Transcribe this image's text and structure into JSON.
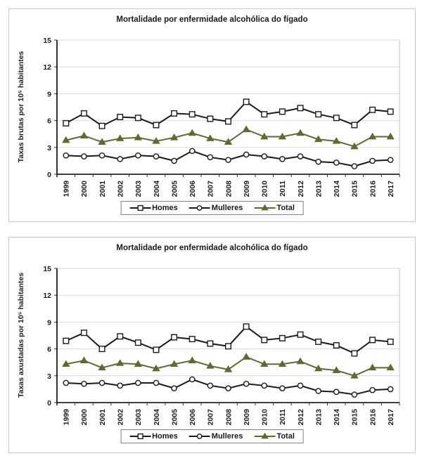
{
  "colors": {
    "series_dark": "#1a1a1a",
    "series_olive": "#5e6b2f",
    "marker_fill_white": "#ffffff",
    "gridline": "#d9d9d9",
    "plot_frame": "#bfbfbf",
    "axis": "#000000",
    "panel_border": "#c9c9c9",
    "legend_border": "#808080",
    "text": "#1a1a1a"
  },
  "chart_data": [
    {
      "type": "line",
      "title": "Mortalidade por enfermidade alcohólica do fígado",
      "ylabel": "Taxas brutas por 10⁵ habitantes",
      "xlabel": "",
      "ylim": [
        0,
        15
      ],
      "yticks": [
        0,
        3,
        6,
        9,
        12,
        15
      ],
      "grid": true,
      "legend_position": "bottom",
      "categories": [
        "1999",
        "2000",
        "2001",
        "2002",
        "2003",
        "2004",
        "2005",
        "2006",
        "2007",
        "2008",
        "2009",
        "2010",
        "2011",
        "2012",
        "2013",
        "2014",
        "2015",
        "2016",
        "2017"
      ],
      "series": [
        {
          "name": "Homes",
          "marker": "square",
          "line_color": "#1a1a1a",
          "marker_fill": "#ffffff",
          "values": [
            5.7,
            6.8,
            5.4,
            6.4,
            6.3,
            5.5,
            6.8,
            6.7,
            6.2,
            5.9,
            8.1,
            6.7,
            7.0,
            7.4,
            6.7,
            6.3,
            5.5,
            7.2,
            7.0
          ]
        },
        {
          "name": "Mulleres",
          "marker": "circle",
          "line_color": "#1a1a1a",
          "marker_fill": "#ffffff",
          "values": [
            2.1,
            2.0,
            2.1,
            1.7,
            2.1,
            2.0,
            1.5,
            2.6,
            1.9,
            1.6,
            2.2,
            2.0,
            1.7,
            2.0,
            1.4,
            1.3,
            0.9,
            1.5,
            1.6
          ]
        },
        {
          "name": "Total",
          "marker": "triangle",
          "line_color": "#5e6b2f",
          "marker_fill": "#5e6b2f",
          "values": [
            3.8,
            4.3,
            3.6,
            4.0,
            4.1,
            3.7,
            4.1,
            4.6,
            4.0,
            3.6,
            5.0,
            4.2,
            4.2,
            4.6,
            3.9,
            3.7,
            3.1,
            4.2,
            4.2
          ]
        }
      ]
    },
    {
      "type": "line",
      "title": "Mortalidade por enfermidade alcohólica do fígado",
      "ylabel": "Taxas axustadas por 10⁵ habitantes",
      "xlabel": "",
      "ylim": [
        0,
        15
      ],
      "yticks": [
        0,
        3,
        6,
        9,
        12,
        15
      ],
      "grid": true,
      "legend_position": "bottom",
      "categories": [
        "1999",
        "2000",
        "2001",
        "2002",
        "2003",
        "2004",
        "2005",
        "2006",
        "2007",
        "2008",
        "2009",
        "2010",
        "2011",
        "2012",
        "2013",
        "2014",
        "2015",
        "2016",
        "2017"
      ],
      "series": [
        {
          "name": "Homes",
          "marker": "square",
          "line_color": "#1a1a1a",
          "marker_fill": "#ffffff",
          "values": [
            6.9,
            7.8,
            6.0,
            7.4,
            6.7,
            5.9,
            7.3,
            7.1,
            6.6,
            6.3,
            8.5,
            7.0,
            7.2,
            7.6,
            6.8,
            6.4,
            5.5,
            7.0,
            6.8
          ]
        },
        {
          "name": "Mulleres",
          "marker": "circle",
          "line_color": "#1a1a1a",
          "marker_fill": "#ffffff",
          "values": [
            2.2,
            2.1,
            2.2,
            1.9,
            2.2,
            2.2,
            1.6,
            2.6,
            1.9,
            1.6,
            2.1,
            1.9,
            1.6,
            1.9,
            1.3,
            1.2,
            0.9,
            1.4,
            1.5
          ]
        },
        {
          "name": "Total",
          "marker": "triangle",
          "line_color": "#5e6b2f",
          "marker_fill": "#5e6b2f",
          "values": [
            4.3,
            4.7,
            3.9,
            4.4,
            4.3,
            3.8,
            4.3,
            4.7,
            4.1,
            3.7,
            5.1,
            4.3,
            4.3,
            4.6,
            3.8,
            3.6,
            3.0,
            3.9,
            3.9
          ]
        }
      ]
    }
  ]
}
